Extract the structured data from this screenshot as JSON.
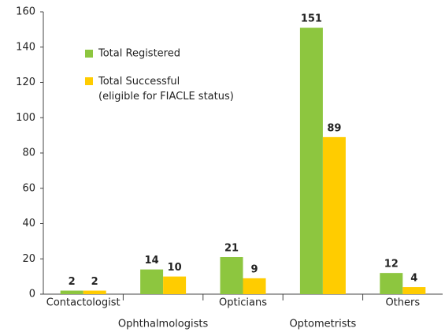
{
  "chart_data": {
    "type": "bar",
    "categories": [
      "Contactologist",
      "Ophthalmologists",
      "Opticians",
      "Optometrists",
      "Others"
    ],
    "series": [
      {
        "name": "Total Registered",
        "color": "#8dc63f",
        "values": [
          2,
          14,
          21,
          151,
          12
        ]
      },
      {
        "name": "Total Successful\n(eligible for FIACLE status)",
        "color": "#ffcc00",
        "values": [
          2,
          10,
          9,
          89,
          4
        ]
      }
    ],
    "ylim": [
      0,
      160
    ],
    "yticks": [
      0,
      20,
      40,
      60,
      80,
      100,
      120,
      140,
      160
    ]
  }
}
